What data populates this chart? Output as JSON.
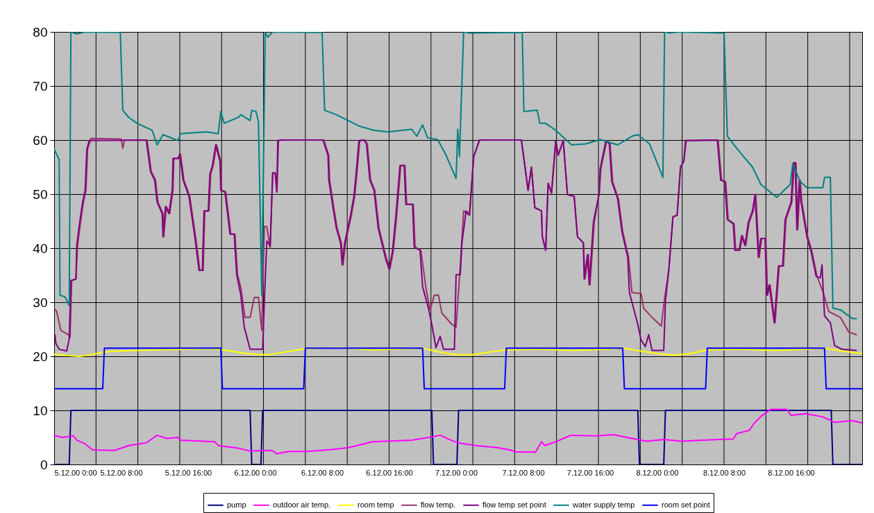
{
  "chart_data": {
    "type": "line",
    "xlim": [
      "2000-12-05T00:00",
      "2000-12-09T00:30"
    ],
    "ylim": [
      0,
      80
    ],
    "yticks": [
      0,
      10,
      20,
      30,
      40,
      50,
      60,
      70,
      80
    ],
    "xticks": [
      {
        "value": "2000-12-05T00:00",
        "label": "5.12.00 0:00"
      },
      {
        "value": "2000-12-05T08:00",
        "label": "5.12.00 8:00"
      },
      {
        "value": "2000-12-05T16:00",
        "label": "5.12.00 16:00"
      },
      {
        "value": "2000-12-06T00:00",
        "label": "6.12.00 0:00"
      },
      {
        "value": "2000-12-06T08:00",
        "label": "6.12.00 8:00"
      },
      {
        "value": "2000-12-06T16:00",
        "label": "6.12.00 16:00"
      },
      {
        "value": "2000-12-07T00:00",
        "label": "7.12.00 0:00"
      },
      {
        "value": "2000-12-07T08:00",
        "label": "7.12.00 8:00"
      },
      {
        "value": "2000-12-07T16:00",
        "label": "7.12.00 16:00"
      },
      {
        "value": "2000-12-08T00:00",
        "label": "8.12.00 0:00"
      },
      {
        "value": "2000-12-08T08:00",
        "label": "8.12.00 8:00"
      },
      {
        "value": "2000-12-08T16:00",
        "label": "8.12.00 16:00"
      },
      {
        "value": "2000-12-05T05:00",
        "label": null
      },
      {
        "value": "2000-12-05T10:00",
        "label": null
      },
      {
        "value": "2000-12-05T15:00",
        "label": null
      },
      {
        "value": "2000-12-05T20:00",
        "label": null
      },
      {
        "value": "2000-12-06T01:00",
        "label": null
      },
      {
        "value": "2000-12-06T06:00",
        "label": null
      },
      {
        "value": "2000-12-06T11:00",
        "label": null
      },
      {
        "value": "2000-12-06T16:00",
        "label": null
      },
      {
        "value": "2000-12-06T21:00",
        "label": null
      },
      {
        "value": "2000-12-07T02:00",
        "label": null
      },
      {
        "value": "2000-12-07T07:00",
        "label": null
      },
      {
        "value": "2000-12-07T12:00",
        "label": null
      },
      {
        "value": "2000-12-07T17:00",
        "label": null
      },
      {
        "value": "2000-12-07T22:00",
        "label": null
      },
      {
        "value": "2000-12-08T03:00",
        "label": null
      },
      {
        "value": "2000-12-08T08:00",
        "label": null
      },
      {
        "value": "2000-12-08T13:00",
        "label": null
      },
      {
        "value": "2000-12-08T18:00",
        "label": null
      },
      {
        "value": "2000-12-08T23:00",
        "label": null
      }
    ],
    "grid": true,
    "legend": "bottom",
    "series": [
      {
        "name": "pump",
        "color": "#000080",
        "x": [
          "2000-12-05T00:00",
          "2000-12-05T01:48",
          "2000-12-05T02:00",
          "2000-12-05T23:24",
          "2000-12-05T23:36",
          "2000-12-06T00:42",
          "2000-12-06T00:54",
          "2000-12-06T21:06",
          "2000-12-06T21:18",
          "2000-12-07T00:06",
          "2000-12-07T00:18",
          "2000-12-07T21:42",
          "2000-12-07T21:54",
          "2000-12-08T00:48",
          "2000-12-08T01:00",
          "2000-12-08T20:48",
          "2000-12-08T21:00",
          "2000-12-09T00:30"
        ],
        "values": [
          0,
          0,
          10,
          10,
          0,
          0,
          10,
          10,
          0,
          0,
          10,
          10,
          0,
          0,
          10,
          10,
          0,
          0
        ]
      },
      {
        "name": "outdoor air temp.",
        "color": "#ff00ff",
        "x": [
          "2000-12-05T00:00",
          "2000-12-05T01:00",
          "2000-12-05T02:18",
          "2000-12-05T02:42",
          "2000-12-05T03:36",
          "2000-12-05T04:36",
          "2000-12-05T07:12",
          "2000-12-05T08:54",
          "2000-12-05T11:00",
          "2000-12-05T12:18",
          "2000-12-05T13:24",
          "2000-12-05T14:48",
          "2000-12-05T15:06",
          "2000-12-05T19:12",
          "2000-12-05T19:36",
          "2000-12-05T22:00",
          "2000-12-05T23:24",
          "2000-12-06T02:00",
          "2000-12-06T02:36",
          "2000-12-06T04:00",
          "2000-12-06T06:12",
          "2000-12-06T09:18",
          "2000-12-06T11:06",
          "2000-12-06T14:00",
          "2000-12-06T18:42",
          "2000-12-06T20:42",
          "2000-12-06T22:06",
          "2000-12-06T23:06",
          "2000-12-07T00:12",
          "2000-12-07T02:24",
          "2000-12-07T05:00",
          "2000-12-07T06:24",
          "2000-12-07T07:12",
          "2000-12-07T09:30",
          "2000-12-07T10:12",
          "2000-12-07T10:36",
          "2000-12-07T11:54",
          "2000-12-07T13:42",
          "2000-12-07T16:54",
          "2000-12-07T18:48",
          "2000-12-07T20:42",
          "2000-12-07T22:48",
          "2000-12-08T00:48",
          "2000-12-08T03:00",
          "2000-12-08T05:18",
          "2000-12-08T09:06",
          "2000-12-08T09:30",
          "2000-12-08T11:00",
          "2000-12-08T11:36",
          "2000-12-08T12:24",
          "2000-12-08T13:36",
          "2000-12-08T15:30",
          "2000-12-08T16:00",
          "2000-12-08T17:48",
          "2000-12-08T19:48",
          "2000-12-08T21:12",
          "2000-12-08T23:18",
          "2000-12-09T00:30"
        ],
        "values": [
          5.4,
          5.0,
          5.3,
          4.5,
          3.9,
          2.7,
          2.6,
          3.5,
          4.0,
          5.4,
          4.8,
          5.0,
          4.5,
          4.2,
          3.5,
          3.0,
          2.5,
          2.6,
          2.0,
          2.4,
          2.4,
          2.8,
          3.1,
          4.2,
          4.5,
          5.0,
          5.4,
          4.7,
          4.0,
          3.5,
          3.1,
          2.7,
          2.3,
          2.3,
          4.2,
          3.5,
          4.2,
          5.4,
          5.3,
          5.5,
          4.9,
          4.3,
          4.6,
          4.3,
          4.5,
          4.7,
          5.7,
          6.3,
          7.6,
          8.9,
          10.2,
          10.2,
          9.1,
          9.4,
          8.8,
          7.8,
          8.1,
          7.7
        ]
      },
      {
        "name": "room temp",
        "color": "#ffff00",
        "x": [
          "2000-12-05T00:00",
          "2000-12-05T02:00",
          "2000-12-05T03:00",
          "2000-12-05T04:00",
          "2000-12-05T06:00",
          "2000-12-05T08:00",
          "2000-12-05T12:00",
          "2000-12-05T16:00",
          "2000-12-05T19:00",
          "2000-12-05T21:00",
          "2000-12-05T23:00",
          "2000-12-06T01:00",
          "2000-12-06T02:00",
          "2000-12-06T04:00",
          "2000-12-06T06:00",
          "2000-12-06T10:00",
          "2000-12-06T14:00",
          "2000-12-06T18:00",
          "2000-12-06T20:00",
          "2000-12-06T22:00",
          "2000-12-07T00:00",
          "2000-12-07T02:00",
          "2000-12-07T04:00",
          "2000-12-07T06:00",
          "2000-12-07T10:00",
          "2000-12-07T14:00",
          "2000-12-07T18:00",
          "2000-12-07T20:00",
          "2000-12-07T22:00",
          "2000-12-08T00:00",
          "2000-12-08T02:00",
          "2000-12-08T04:00",
          "2000-12-08T06:00",
          "2000-12-08T10:00",
          "2000-12-08T14:00",
          "2000-12-08T18:00",
          "2000-12-08T20:00",
          "2000-12-08T22:00",
          "2000-12-09T00:30"
        ],
        "values": [
          20.4,
          20.1,
          20.0,
          20.2,
          20.8,
          21.0,
          21.2,
          21.3,
          21.4,
          21.0,
          20.5,
          20.3,
          20.4,
          20.9,
          21.4,
          21.6,
          21.2,
          21.4,
          21.5,
          20.8,
          20.3,
          20.3,
          20.8,
          21.2,
          21.3,
          21.1,
          21.3,
          21.5,
          21.0,
          20.5,
          20.2,
          20.5,
          21.2,
          21.3,
          21.1,
          21.3,
          21.5,
          21.0,
          20.5
        ]
      },
      {
        "name": "flow temp.",
        "color": "#993366",
        "x": [
          "2000-12-05T00:00",
          "2000-12-05T00:18",
          "2000-12-05T00:48",
          "2000-12-05T01:42",
          "2000-12-05T01:54",
          "2000-12-05T02:06",
          "2000-12-05T02:36",
          "2000-12-05T02:48",
          "2000-12-05T03:06",
          "2000-12-05T03:30",
          "2000-12-05T03:48",
          "2000-12-05T04:00",
          "2000-12-05T04:24",
          "2000-12-05T08:00",
          "2000-12-05T08:12",
          "2000-12-05T08:24",
          "2000-12-05T11:06",
          "2000-12-05T11:36",
          "2000-12-05T12:06",
          "2000-12-05T12:24",
          "2000-12-05T13:00",
          "2000-12-05T13:06",
          "2000-12-05T13:24",
          "2000-12-05T13:48",
          "2000-12-05T14:12",
          "2000-12-05T14:18",
          "2000-12-05T14:54",
          "2000-12-05T15:06",
          "2000-12-05T15:30",
          "2000-12-05T16:12",
          "2000-12-05T16:36",
          "2000-12-05T16:54",
          "2000-12-05T17:24",
          "2000-12-05T17:48",
          "2000-12-05T18:00",
          "2000-12-05T18:30",
          "2000-12-05T18:42",
          "2000-12-05T19:00",
          "2000-12-05T19:24",
          "2000-12-05T19:54",
          "2000-12-05T20:00",
          "2000-12-05T20:30",
          "2000-12-05T21:06",
          "2000-12-05T21:36",
          "2000-12-05T21:54",
          "2000-12-05T22:18",
          "2000-12-05T22:48",
          "2000-12-05T23:24",
          "2000-12-05T23:54",
          "2000-12-06T00:24",
          "2000-12-06T00:48",
          "2000-12-06T01:06",
          "2000-12-06T01:24",
          "2000-12-06T01:48",
          "2000-12-06T02:06",
          "2000-12-06T02:24",
          "2000-12-06T02:36",
          "2000-12-06T02:48",
          "2000-12-06T03:12",
          "2000-12-06T08:12",
          "2000-12-06T08:48",
          "2000-12-06T08:54",
          "2000-12-06T09:24",
          "2000-12-06T09:48",
          "2000-12-06T10:18",
          "2000-12-06T10:30",
          "2000-12-06T10:48",
          "2000-12-06T11:30",
          "2000-12-06T11:54",
          "2000-12-06T12:12",
          "2000-12-06T12:30",
          "2000-12-06T13:06",
          "2000-12-06T13:24",
          "2000-12-06T13:48",
          "2000-12-06T14:18",
          "2000-12-06T14:48",
          "2000-12-06T15:42",
          "2000-12-06T16:06",
          "2000-12-06T16:30",
          "2000-12-06T16:54",
          "2000-12-06T17:24",
          "2000-12-06T17:54",
          "2000-12-06T18:06",
          "2000-12-06T18:54",
          "2000-12-06T19:06",
          "2000-12-06T19:48",
          "2000-12-06T20:24",
          "2000-12-06T20:54",
          "2000-12-06T21:24",
          "2000-12-06T21:54",
          "2000-12-06T22:18",
          "2000-12-06T23:30",
          "2000-12-07T00:00",
          "2000-12-07T00:30",
          "2000-12-07T00:54",
          "2000-12-07T01:36",
          "2000-12-07T02:06",
          "2000-12-07T02:48",
          "2000-12-07T07:48",
          "2000-12-07T08:18",
          "2000-12-07T08:36",
          "2000-12-07T09:00",
          "2000-12-07T09:24",
          "2000-12-07T10:12",
          "2000-12-07T10:18",
          "2000-12-07T10:42",
          "2000-12-07T11:00",
          "2000-12-07T11:24",
          "2000-12-07T11:54",
          "2000-12-07T12:12",
          "2000-12-07T12:48",
          "2000-12-07T13:18",
          "2000-12-07T14:06",
          "2000-12-07T14:30",
          "2000-12-07T15:12",
          "2000-12-07T15:24",
          "2000-12-07T15:48",
          "2000-12-07T16:00",
          "2000-12-07T16:30",
          "2000-12-07T17:06",
          "2000-12-07T17:18",
          "2000-12-07T18:00",
          "2000-12-07T18:24",
          "2000-12-07T18:42",
          "2000-12-07T19:24",
          "2000-12-07T19:54",
          "2000-12-07T20:36",
          "2000-12-07T21:00",
          "2000-12-07T22:06",
          "2000-12-07T22:24",
          "2000-12-07T23:24",
          "2000-12-08T00:30",
          "2000-12-08T00:54",
          "2000-12-08T01:24",
          "2000-12-08T01:54",
          "2000-12-08T02:24",
          "2000-12-08T02:48",
          "2000-12-08T03:12",
          "2000-12-08T03:30",
          "2000-12-08T07:18",
          "2000-12-08T07:42",
          "2000-12-08T08:12",
          "2000-12-08T08:30",
          "2000-12-08T09:12",
          "2000-12-08T09:24",
          "2000-12-08T09:54",
          "2000-12-08T10:12",
          "2000-12-08T10:36",
          "2000-12-08T11:00",
          "2000-12-08T11:30",
          "2000-12-08T11:48",
          "2000-12-08T12:12",
          "2000-12-08T12:30",
          "2000-12-08T13:00",
          "2000-12-08T13:12",
          "2000-12-08T13:30",
          "2000-12-08T14:06",
          "2000-12-08T14:36",
          "2000-12-08T15:06",
          "2000-12-08T15:24",
          "2000-12-08T16:06",
          "2000-12-08T16:24",
          "2000-12-08T16:36",
          "2000-12-08T16:48",
          "2000-12-08T17:06",
          "2000-12-08T17:18",
          "2000-12-08T18:00",
          "2000-12-08T18:30",
          "2000-12-08T19:06",
          "2000-12-08T19:48",
          "2000-12-08T20:30",
          "2000-12-08T21:54",
          "2000-12-08T22:54",
          "2000-12-08T23:48"
        ],
        "values": [
          28.9,
          28.3,
          24.8,
          24.0,
          23.5,
          34.0,
          34.3,
          40.5,
          44.2,
          48.5,
          50.7,
          58.3,
          60.3,
          60.2,
          58.5,
          60.0,
          60.0,
          54.2,
          52.6,
          48.5,
          46.4,
          42.1,
          47.7,
          46.4,
          50.7,
          56.6,
          56.6,
          57.4,
          52.6,
          49.6,
          45.3,
          42.1,
          35.9,
          35.9,
          46.9,
          46.9,
          53.7,
          55.3,
          59.1,
          56.1,
          50.7,
          50.4,
          42.6,
          42.6,
          35.1,
          32.7,
          27.2,
          27.2,
          30.9,
          30.9,
          24.8,
          44.0,
          44.0,
          40.0,
          53.9,
          53.9,
          50.4,
          59.9,
          60.0,
          60.0,
          57.2,
          52.6,
          47.5,
          43.7,
          41.0,
          36.9,
          41.0,
          46.1,
          49.6,
          54.5,
          59.9,
          60.0,
          59.3,
          52.6,
          50.7,
          43.7,
          38.0,
          36.1,
          39.4,
          45.8,
          55.3,
          55.3,
          48.1,
          48.1,
          40.2,
          39.6,
          32.6,
          28.6,
          31.3,
          31.3,
          28.0,
          25.9,
          25.4,
          36.7,
          46.9,
          46.1,
          56.9,
          60.0,
          60.0,
          54.2,
          50.7,
          55.0,
          47.5,
          46.9,
          42.1,
          39.6,
          52.0,
          50.2,
          59.9,
          57.2,
          59.9,
          49.9,
          49.6,
          42.1,
          41.0,
          34.3,
          38.8,
          33.2,
          44.8,
          50.2,
          54.7,
          59.9,
          59.3,
          52.3,
          49.1,
          43.1,
          38.3,
          31.8,
          31.6,
          28.9,
          27.2,
          25.6,
          30.7,
          35.9,
          45.8,
          46.1,
          55.0,
          56.1,
          59.9,
          60.0,
          52.6,
          52.3,
          45.3,
          44.5,
          39.6,
          39.6,
          42.3,
          40.5,
          44.8,
          46.9,
          49.9,
          38.3,
          41.8,
          41.8,
          31.3,
          33.2,
          26.2,
          36.7,
          36.7,
          45.3,
          48.5,
          55.8,
          55.8,
          43.4,
          52.6,
          48.5,
          42.1,
          39.4,
          34.8,
          32.0,
          28.3,
          27.2,
          24.5,
          24.0
        ]
      },
      {
        "name": "flow temp set point",
        "color": "#800080",
        "x": [
          "2000-12-05T00:06",
          "2000-12-05T00:12",
          "2000-12-05T00:36",
          "2000-12-05T01:30",
          "2000-12-05T01:48",
          "2000-12-05T02:00",
          "2000-12-05T02:36",
          "2000-12-05T02:42",
          "2000-12-05T03:00",
          "2000-12-05T03:24",
          "2000-12-05T03:42",
          "2000-12-05T03:54",
          "2000-12-05T04:12",
          "2000-12-05T11:00",
          "2000-12-05T11:30",
          "2000-12-05T12:00",
          "2000-12-05T12:18",
          "2000-12-05T12:54",
          "2000-12-05T13:00",
          "2000-12-05T13:18",
          "2000-12-05T13:42",
          "2000-12-05T14:06",
          "2000-12-05T14:12",
          "2000-12-05T14:48",
          "2000-12-05T15:00",
          "2000-12-05T15:24",
          "2000-12-05T16:06",
          "2000-12-05T16:30",
          "2000-12-05T16:48",
          "2000-12-05T17:18",
          "2000-12-05T17:42",
          "2000-12-05T17:54",
          "2000-12-05T18:24",
          "2000-12-05T18:36",
          "2000-12-05T18:54",
          "2000-12-05T19:18",
          "2000-12-05T19:48",
          "2000-12-05T19:54",
          "2000-12-05T20:24",
          "2000-12-05T21:00",
          "2000-12-05T21:30",
          "2000-12-05T21:48",
          "2000-12-05T22:18",
          "2000-12-05T22:42",
          "2000-12-05T23:24",
          "2000-12-06T00:54",
          "2000-12-06T01:06",
          "2000-12-06T01:24",
          "2000-12-06T01:48",
          "2000-12-06T02:06",
          "2000-12-06T02:24",
          "2000-12-06T02:36",
          "2000-12-06T02:42",
          "2000-12-06T03:06",
          "2000-12-06T08:06",
          "2000-12-06T08:42",
          "2000-12-06T08:48",
          "2000-12-06T09:18",
          "2000-12-06T09:42",
          "2000-12-06T10:12",
          "2000-12-06T10:24",
          "2000-12-06T10:42",
          "2000-12-06T11:24",
          "2000-12-06T11:48",
          "2000-12-06T12:06",
          "2000-12-06T12:24",
          "2000-12-06T13:00",
          "2000-12-06T13:18",
          "2000-12-06T13:42",
          "2000-12-06T14:12",
          "2000-12-06T14:42",
          "2000-12-06T15:36",
          "2000-12-06T16:00",
          "2000-12-06T16:24",
          "2000-12-06T16:48",
          "2000-12-06T17:18",
          "2000-12-06T17:48",
          "2000-12-06T18:00",
          "2000-12-06T18:48",
          "2000-12-06T19:00",
          "2000-12-06T19:42",
          "2000-12-06T20:00",
          "2000-12-06T20:42",
          "2000-12-06T21:06",
          "2000-12-06T21:36",
          "2000-12-06T22:06",
          "2000-12-06T22:30",
          "2000-12-06T23:48",
          "2000-12-07T00:00",
          "2000-12-07T00:30",
          "2000-12-07T00:42",
          "2000-12-07T01:12",
          "2000-12-07T01:36",
          "2000-12-07T02:06",
          "2000-12-07T02:48",
          "2000-12-07T07:48",
          "2000-12-07T08:18",
          "2000-12-07T08:36",
          "2000-12-07T09:00",
          "2000-12-07T09:24",
          "2000-12-07T10:12",
          "2000-12-07T10:18",
          "2000-12-07T10:42",
          "2000-12-07T11:00",
          "2000-12-07T11:24",
          "2000-12-07T11:54",
          "2000-12-07T12:12",
          "2000-12-07T12:48",
          "2000-12-07T13:18",
          "2000-12-07T14:06",
          "2000-12-07T14:30",
          "2000-12-07T15:12",
          "2000-12-07T15:18",
          "2000-12-07T15:42",
          "2000-12-07T15:54",
          "2000-12-07T16:24",
          "2000-12-07T17:06",
          "2000-12-07T17:12",
          "2000-12-07T17:54",
          "2000-12-07T18:18",
          "2000-12-07T18:36",
          "2000-12-07T19:18",
          "2000-12-07T19:48",
          "2000-12-07T20:30",
          "2000-12-07T20:42",
          "2000-12-07T21:42",
          "2000-12-07T22:06",
          "2000-12-07T22:36",
          "2000-12-07T23:00",
          "2000-12-07T23:24",
          "2000-12-08T00:48",
          "2000-12-08T01:00",
          "2000-12-08T01:24",
          "2000-12-08T01:54",
          "2000-12-08T02:24",
          "2000-12-08T02:48",
          "2000-12-08T03:12",
          "2000-12-08T03:24",
          "2000-12-08T07:12",
          "2000-12-08T07:36",
          "2000-12-08T08:06",
          "2000-12-08T08:24",
          "2000-12-08T09:06",
          "2000-12-08T09:18",
          "2000-12-08T09:48",
          "2000-12-08T10:06",
          "2000-12-08T10:30",
          "2000-12-08T10:54",
          "2000-12-08T11:24",
          "2000-12-08T11:42",
          "2000-12-08T12:06",
          "2000-12-08T12:24",
          "2000-12-08T12:54",
          "2000-12-08T13:06",
          "2000-12-08T13:24",
          "2000-12-08T14:00",
          "2000-12-08T14:30",
          "2000-12-08T15:00",
          "2000-12-08T15:18",
          "2000-12-08T16:00",
          "2000-12-08T16:18",
          "2000-12-08T16:30",
          "2000-12-08T16:42",
          "2000-12-08T17:00",
          "2000-12-08T17:12",
          "2000-12-08T17:54",
          "2000-12-08T18:24",
          "2000-12-08T19:00",
          "2000-12-08T19:30",
          "2000-12-08T19:42",
          "2000-12-08T20:00",
          "2000-12-08T20:42",
          "2000-12-08T21:12",
          "2000-12-08T22:06",
          "2000-12-08T23:48"
        ],
        "values": [
          24.0,
          22.4,
          21.3,
          21.0,
          23.2,
          34.0,
          34.3,
          40.5,
          44.2,
          48.5,
          50.7,
          58.3,
          59.9,
          60.0,
          54.2,
          52.6,
          48.5,
          46.4,
          42.1,
          47.7,
          46.4,
          50.7,
          56.6,
          56.6,
          57.4,
          52.6,
          49.6,
          45.3,
          42.1,
          35.9,
          35.9,
          46.9,
          46.9,
          53.7,
          55.3,
          59.1,
          56.1,
          50.7,
          50.4,
          42.6,
          42.6,
          35.1,
          31.3,
          25.4,
          21.3,
          21.3,
          30.1,
          41.3,
          40.5,
          53.9,
          53.9,
          50.4,
          59.9,
          60.0,
          60.0,
          57.2,
          52.6,
          47.5,
          43.7,
          41.0,
          36.9,
          41.0,
          46.1,
          49.6,
          54.5,
          59.9,
          60.0,
          59.3,
          52.6,
          50.7,
          43.7,
          38.0,
          36.1,
          39.4,
          45.8,
          55.3,
          55.3,
          48.1,
          48.1,
          40.2,
          39.6,
          32.9,
          28.9,
          25.9,
          21.6,
          23.7,
          21.3,
          21.3,
          35.1,
          35.1,
          41.0,
          46.9,
          46.1,
          56.9,
          60.0,
          60.0,
          54.2,
          50.7,
          55.0,
          47.5,
          46.9,
          42.1,
          39.6,
          52.0,
          50.2,
          59.9,
          57.2,
          59.9,
          49.9,
          49.6,
          42.1,
          41.0,
          34.3,
          38.8,
          33.2,
          44.8,
          50.2,
          54.7,
          59.9,
          59.3,
          52.3,
          49.1,
          43.1,
          38.3,
          31.8,
          25.9,
          23.0,
          21.8,
          24.0,
          21.1,
          21.1,
          30.2,
          35.9,
          45.8,
          46.1,
          55.0,
          56.1,
          59.9,
          60.0,
          52.6,
          52.3,
          45.3,
          44.5,
          39.6,
          39.6,
          42.3,
          40.5,
          44.8,
          46.9,
          49.9,
          38.3,
          41.8,
          41.8,
          31.3,
          33.2,
          26.2,
          36.7,
          36.7,
          45.3,
          48.5,
          55.8,
          55.8,
          43.4,
          52.6,
          48.5,
          42.1,
          39.4,
          34.8,
          34.5,
          36.9,
          27.5,
          26.2,
          22.0,
          21.3,
          21.1
        ]
      },
      {
        "name": "water supply temp",
        "color": "#008080",
        "x": [
          "2000-12-05T00:00",
          "2000-12-05T00:36",
          "2000-12-05T00:42",
          "2000-12-05T01:18",
          "2000-12-05T01:48",
          "2000-12-05T02:00",
          "2000-12-05T02:42",
          "2000-12-05T03:42",
          "2000-12-05T07:54",
          "2000-12-05T08:12",
          "2000-12-05T08:54",
          "2000-12-05T09:54",
          "2000-12-05T11:42",
          "2000-12-05T12:18",
          "2000-12-05T13:00",
          "2000-12-05T14:48",
          "2000-12-05T15:06",
          "2000-12-05T18:12",
          "2000-12-05T19:36",
          "2000-12-05T19:54",
          "2000-12-05T20:18",
          "2000-12-05T22:00",
          "2000-12-05T22:18",
          "2000-12-05T23:24",
          "2000-12-05T23:36",
          "2000-12-06T00:06",
          "2000-12-06T00:24",
          "2000-12-06T00:48",
          "2000-12-06T01:12",
          "2000-12-06T01:30",
          "2000-12-06T02:06",
          "2000-12-06T08:00",
          "2000-12-06T08:18",
          "2000-12-06T09:42",
          "2000-12-06T11:06",
          "2000-12-06T12:24",
          "2000-12-06T14:12",
          "2000-12-06T15:54",
          "2000-12-06T18:42",
          "2000-12-06T19:18",
          "2000-12-06T20:00",
          "2000-12-06T20:36",
          "2000-12-06T21:48",
          "2000-12-06T22:48",
          "2000-12-07T00:00",
          "2000-12-07T00:12",
          "2000-12-07T00:24",
          "2000-12-07T00:54",
          "2000-12-07T01:36",
          "2000-12-07T07:54",
          "2000-12-07T08:06",
          "2000-12-07T09:42",
          "2000-12-07T10:00",
          "2000-12-07T10:42",
          "2000-12-07T11:54",
          "2000-12-07T13:48",
          "2000-12-07T15:30",
          "2000-12-07T17:12",
          "2000-12-07T19:18",
          "2000-12-07T21:00",
          "2000-12-07T21:42",
          "2000-12-07T23:06",
          "2000-12-08T00:42",
          "2000-12-08T00:54",
          "2000-12-08T01:30",
          "2000-12-08T02:36",
          "2000-12-08T08:00",
          "2000-12-08T08:24",
          "2000-12-08T09:30",
          "2000-12-08T10:12",
          "2000-12-08T11:24",
          "2000-12-08T12:24",
          "2000-12-08T14:18",
          "2000-12-08T15:54",
          "2000-12-08T16:12",
          "2000-12-08T17:06",
          "2000-12-08T17:54",
          "2000-12-08T19:48",
          "2000-12-08T20:00",
          "2000-12-08T20:42",
          "2000-12-08T21:00",
          "2000-12-08T21:54",
          "2000-12-08T23:18",
          "2000-12-08T23:48"
        ],
        "values": [
          58.3,
          56.4,
          31.3,
          31.0,
          29.4,
          80,
          79.6,
          80,
          79.9,
          65.5,
          64.2,
          63.1,
          61.8,
          59.1,
          61.0,
          59.9,
          61.2,
          61.5,
          61.2,
          65.3,
          63.1,
          64.2,
          64.7,
          63.6,
          65.5,
          65.3,
          63.4,
          31.3,
          80,
          79.0,
          80,
          79.9,
          65.5,
          64.7,
          63.6,
          62.6,
          61.8,
          61.5,
          62.0,
          60.7,
          62.8,
          60.4,
          60.1,
          57.2,
          52.9,
          62.0,
          56.9,
          80,
          79.8,
          79.9,
          65.3,
          65.5,
          63.1,
          63.1,
          61.8,
          59.1,
          59.3,
          60.1,
          59.1,
          60.7,
          61.0,
          59.3,
          53.1,
          80,
          79.8,
          80,
          79.8,
          60.7,
          58.5,
          57.2,
          55.0,
          51.8,
          49.4,
          51.8,
          55.6,
          52.3,
          51.2,
          51.2,
          53.1,
          53.1,
          28.9,
          28.6,
          27.0,
          27.0
        ]
      },
      {
        "name": "room set point",
        "color": "#0000ff",
        "x": [
          "2000-12-05T00:00",
          "2000-12-05T05:48",
          "2000-12-05T06:00",
          "2000-12-05T19:54",
          "2000-12-05T20:06",
          "2000-12-06T05:48",
          "2000-12-06T06:00",
          "2000-12-06T20:00",
          "2000-12-06T20:12",
          "2000-12-07T05:48",
          "2000-12-07T06:00",
          "2000-12-07T19:54",
          "2000-12-07T20:06",
          "2000-12-08T05:48",
          "2000-12-08T06:00",
          "2000-12-08T20:00",
          "2000-12-08T20:12",
          "2000-12-09T00:30"
        ],
        "values": [
          14,
          14,
          21.5,
          21.5,
          14,
          14,
          21.5,
          21.5,
          14,
          14,
          21.5,
          21.5,
          14,
          14,
          21.5,
          21.5,
          14,
          14
        ]
      }
    ]
  }
}
